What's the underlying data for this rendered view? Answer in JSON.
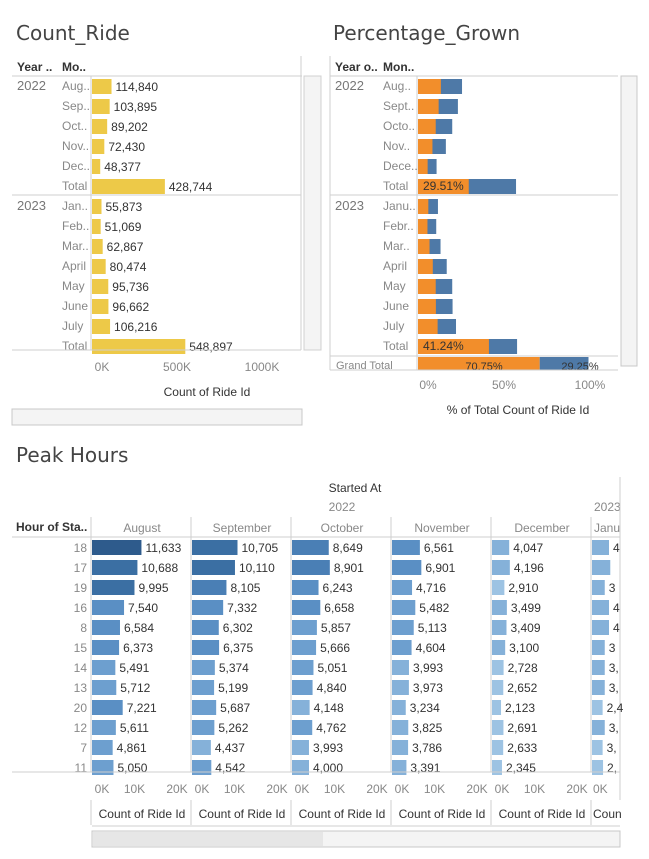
{
  "count_ride": {
    "title": "Count_Ride",
    "col_headers": [
      "Year ..",
      "Mo.."
    ],
    "axis_title": "Count of Ride Id",
    "axis_ticks": [
      "0K",
      "500K",
      "1000K"
    ],
    "axis_max": 1000000,
    "bar_color": "#EDC948"
  },
  "percentage_grown": {
    "title": "Percentage_Grown",
    "col_headers": [
      "Year o..",
      "Mon.."
    ],
    "axis_title": "% of Total Count of Ride Id",
    "axis_ticks": [
      "0%",
      "50%",
      "100%"
    ],
    "colors": {
      "first": "#F28E2B",
      "second": "#4E79A7"
    },
    "labels": {
      "total_2022": "29.51%",
      "total_2023": "41.24%",
      "grand_total": "70.75%",
      "grand_total_2": "29.25%",
      "grand_total_row": "Grand Total"
    }
  },
  "peak_hours": {
    "title": "Peak Hours",
    "row_header": "Hour of Sta..",
    "top_header": "Started At",
    "year_2022": "2022",
    "year_2023": "2023",
    "jan_label": "Janu",
    "axis_title": "Count of Ride Id",
    "axis_title_cut": "Coun",
    "axis_ticks": [
      "0K",
      "10K",
      "20K"
    ],
    "axis_max": 20000,
    "months": [
      "August",
      "September",
      "October",
      "November",
      "December"
    ],
    "hours": [
      18,
      17,
      19,
      16,
      8,
      15,
      14,
      13,
      20,
      12,
      7,
      11
    ]
  },
  "chart_data": [
    {
      "type": "bar",
      "title": "Count_Ride",
      "xlabel": "Count of Ride Id",
      "xlim": [
        0,
        1000000
      ],
      "groups": [
        {
          "year": "2022",
          "rows": [
            {
              "month": "Aug..",
              "value": 114840,
              "label": "114,840"
            },
            {
              "month": "Sep..",
              "value": 103895,
              "label": "103,895"
            },
            {
              "month": "Oct..",
              "value": 89202,
              "label": "89,202"
            },
            {
              "month": "Nov..",
              "value": 72430,
              "label": "72,430"
            },
            {
              "month": "Dec..",
              "value": 48377,
              "label": "48,377"
            },
            {
              "month": "Total",
              "value": 428744,
              "label": "428,744"
            }
          ]
        },
        {
          "year": "2023",
          "rows": [
            {
              "month": "Jan..",
              "value": 55873,
              "label": "55,873"
            },
            {
              "month": "Feb..",
              "value": 51069,
              "label": "51,069"
            },
            {
              "month": "Mar..",
              "value": 62867,
              "label": "62,867"
            },
            {
              "month": "April",
              "value": 80474,
              "label": "80,474"
            },
            {
              "month": "May",
              "value": 95736,
              "label": "95,736"
            },
            {
              "month": "June",
              "value": 96662,
              "label": "96,662"
            },
            {
              "month": "July",
              "value": 106216,
              "label": "106,216"
            },
            {
              "month": "Total",
              "value": 548897,
              "label": "548,897"
            }
          ]
        }
      ]
    },
    {
      "type": "bar",
      "title": "Percentage_Grown",
      "xlabel": "% of Total Count of Ride Id",
      "xlim": [
        0,
        100
      ],
      "groups": [
        {
          "year": "2022",
          "rows": [
            {
              "month": "Aug..",
              "first": 13.3,
              "total": 25.6
            },
            {
              "month": "Sept..",
              "first": 12.0,
              "total": 23.2
            },
            {
              "month": "Octo..",
              "first": 10.3,
              "total": 19.9
            },
            {
              "month": "Nov..",
              "first": 8.4,
              "total": 16.2
            },
            {
              "month": "Dece..",
              "first": 5.6,
              "total": 10.8
            },
            {
              "month": "Total",
              "first": 29.51,
              "total": 57.0
            }
          ]
        },
        {
          "year": "2023",
          "rows": [
            {
              "month": "Janu..",
              "first": 6.0,
              "total": 11.6
            },
            {
              "month": "Febr..",
              "first": 5.5,
              "total": 10.6
            },
            {
              "month": "Mar..",
              "first": 6.7,
              "total": 13.1
            },
            {
              "month": "April",
              "first": 8.6,
              "total": 16.7
            },
            {
              "month": "May",
              "first": 10.3,
              "total": 19.9
            },
            {
              "month": "June",
              "first": 10.4,
              "total": 20.1
            },
            {
              "month": "July",
              "first": 11.4,
              "total": 22.1
            },
            {
              "month": "Total",
              "first": 41.24,
              "total": 57.6
            }
          ]
        }
      ],
      "grand_total": {
        "first": 70.75,
        "second": 29.25
      }
    },
    {
      "type": "bar",
      "title": "Peak Hours",
      "xlabel": "Count of Ride Id",
      "xlim": [
        0,
        20000
      ],
      "categories": [
        "18",
        "17",
        "19",
        "16",
        "8",
        "15",
        "14",
        "13",
        "20",
        "12",
        "7",
        "11"
      ],
      "series": [
        {
          "name": "August",
          "values": [
            11633,
            10688,
            9995,
            7540,
            6584,
            6373,
            5491,
            5712,
            7221,
            5611,
            4861,
            5050
          ],
          "labels": [
            "11,633",
            "10,688",
            "9,995",
            "7,540",
            "6,584",
            "6,373",
            "5,491",
            "5,712",
            "7,221",
            "5,611",
            "4,861",
            "5,050"
          ]
        },
        {
          "name": "September",
          "values": [
            10705,
            10110,
            8105,
            7332,
            6302,
            6375,
            5374,
            5199,
            5687,
            5262,
            4437,
            4542
          ],
          "labels": [
            "10,705",
            "10,110",
            "8,105",
            "7,332",
            "6,302",
            "6,375",
            "5,374",
            "5,199",
            "5,687",
            "5,262",
            "4,437",
            "4,542"
          ]
        },
        {
          "name": "October",
          "values": [
            8649,
            8901,
            6243,
            6658,
            5857,
            5666,
            5051,
            4840,
            4148,
            4762,
            3993,
            4000
          ],
          "labels": [
            "8,649",
            "8,901",
            "6,243",
            "6,658",
            "5,857",
            "5,666",
            "5,051",
            "4,840",
            "4,148",
            "4,762",
            "3,993",
            "4,000"
          ]
        },
        {
          "name": "November",
          "values": [
            6561,
            6901,
            4716,
            5482,
            5113,
            4604,
            3993,
            3973,
            3234,
            3825,
            3786,
            3391
          ],
          "labels": [
            "6,561",
            "6,901",
            "4,716",
            "5,482",
            "5,113",
            "4,604",
            "3,993",
            "3,973",
            "3,234",
            "3,825",
            "3,786",
            "3,391"
          ]
        },
        {
          "name": "December",
          "values": [
            4047,
            4196,
            2910,
            3499,
            3409,
            3100,
            2728,
            2652,
            2123,
            2691,
            2633,
            2345
          ],
          "labels": [
            "4,047",
            "4,196",
            "2,910",
            "3,499",
            "3,409",
            "3,100",
            "2,728",
            "2,652",
            "2,123",
            "2,691",
            "2,633",
            "2,345"
          ]
        },
        {
          "name": "Janu",
          "values": [
            4000,
            4300,
            3000,
            4000,
            4000,
            3000,
            3000,
            3000,
            2500,
            3000,
            2500,
            2600
          ],
          "labels": [
            "4",
            "",
            "3",
            "4",
            "4",
            "3",
            "3,",
            "3,",
            "2,4",
            "3,",
            "3,",
            "2,"
          ]
        }
      ]
    }
  ]
}
